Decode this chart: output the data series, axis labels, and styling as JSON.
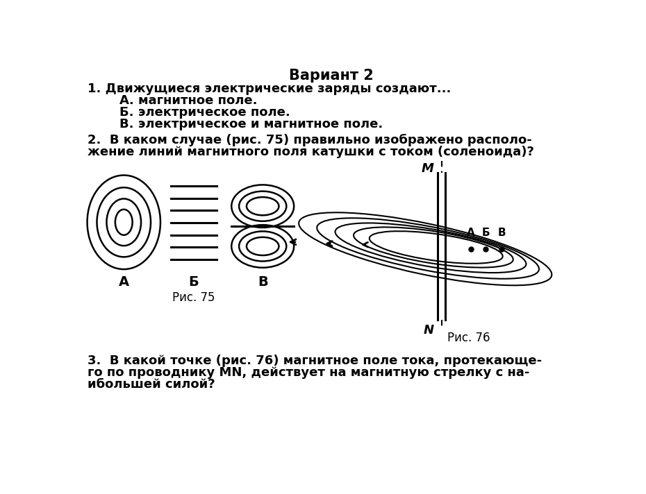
{
  "title": "Вариант 2",
  "bg_color": "#ffffff",
  "text_color": "#000000",
  "q1_text": "1. Движущиеся электрические заряды создают...",
  "q1_a": "    А. магнитное поле.",
  "q1_b": "    Б. электрическое поле.",
  "q1_v": "    В. электрическое и магнитное поле.",
  "q2_line1": "2.  В каком случае (рис. 75) правильно изображено располо-",
  "q2_line2": "жение линий магнитного поля катушки с током (соленоида)?",
  "fig75_label": "Рис. 75",
  "fig76_label": "Рис. 76",
  "label_A": "А",
  "label_B": "Б",
  "label_V": "В",
  "label_M": "M",
  "label_N": "N",
  "label_pA": "А",
  "label_pB": "Б",
  "label_pV": "В",
  "q3_line1": "3.  В какой точке (рис. 76) магнитное поле тока, протекающе-",
  "q3_line2": "го по проводнику MN, действует на магнитную стрелку с на-",
  "q3_line3": "ибольшей силой?"
}
